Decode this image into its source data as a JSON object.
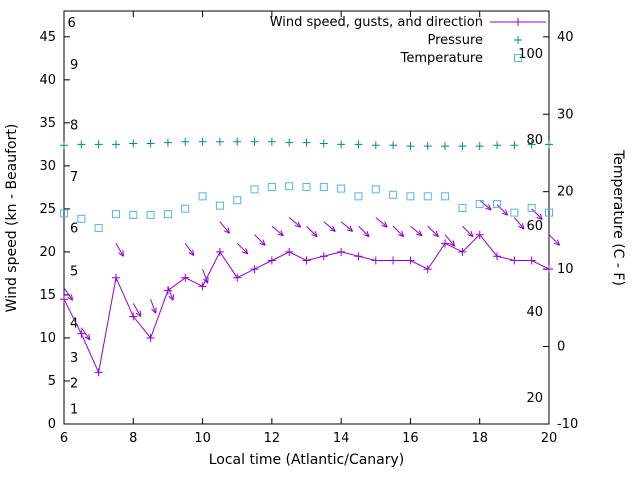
{
  "chart_data": {
    "type": "line",
    "title": "",
    "xlabel": "Local time (Atlantic/Canary)",
    "ylabel_left": "Wind speed (kn - Beaufort)",
    "ylabel_right": "Temperature (C - F)",
    "x_range": [
      6,
      20
    ],
    "y_left_range": [
      0,
      48
    ],
    "y_right_range": [
      -10,
      43.3
    ],
    "x_ticks": [
      6,
      8,
      10,
      12,
      14,
      16,
      18,
      20
    ],
    "y_left_ticks": [
      0,
      5,
      10,
      15,
      20,
      25,
      30,
      35,
      40,
      45
    ],
    "y_right_ticks": [
      -10,
      0,
      10,
      20,
      30,
      40
    ],
    "grid": false,
    "beaufort_labels": [
      {
        "label": "1",
        "kn": 1
      },
      {
        "label": "2",
        "kn": 4
      },
      {
        "label": "3",
        "kn": 7
      },
      {
        "label": "4",
        "kn": 11
      },
      {
        "label": "5",
        "kn": 17
      },
      {
        "label": "6",
        "kn": 22
      },
      {
        "label": "7",
        "kn": 28
      },
      {
        "label": "8",
        "kn": 34
      },
      {
        "label": "9",
        "kn": 41
      }
    ],
    "fahrenheit_labels": [
      {
        "label": "20",
        "f": 20
      },
      {
        "label": "40",
        "f": 40
      },
      {
        "label": "60",
        "f": 60
      },
      {
        "label": "80",
        "f": 80
      },
      {
        "label": "100",
        "f": 100
      }
    ],
    "extra_labels": [
      {
        "label": "6",
        "x": 6.1,
        "kn": 46.6
      }
    ],
    "x": [
      6,
      6.5,
      7,
      7.5,
      8,
      8.5,
      9,
      9.5,
      10,
      10.5,
      11,
      11.5,
      12,
      12.5,
      13,
      13.5,
      14,
      14.5,
      15,
      15.5,
      16,
      16.5,
      17,
      17.5,
      18,
      18.5,
      19,
      19.5,
      20
    ],
    "series": [
      {
        "name": "Wind speed, gusts, and direction",
        "style": "linespoints",
        "marker": "plus",
        "color": "#9400d3",
        "axis": "left",
        "units": "kn",
        "values": [
          14.5,
          10.5,
          6,
          17,
          12.5,
          10,
          15.5,
          17,
          16,
          20,
          17,
          18,
          19,
          20,
          19,
          19.5,
          20,
          19.5,
          19,
          19,
          19,
          18,
          21,
          20,
          22,
          19.5,
          19,
          19,
          18
        ]
      },
      {
        "name": "Wind gusts with direction arrows",
        "style": "arrows",
        "color": "#9400d3",
        "axis": "left",
        "units": "kn",
        "values": [
          15.8,
          11.2,
          null,
          21,
          14,
          14.5,
          16,
          21,
          18,
          23.5,
          21,
          22,
          23,
          24,
          23,
          23.5,
          23.5,
          23,
          24,
          23,
          23,
          23,
          22,
          23,
          26,
          25.5,
          24,
          25,
          22
        ],
        "direction_deg_screen": [
          55,
          55,
          null,
          60,
          60,
          70,
          70,
          55,
          70,
          50,
          45,
          45,
          40,
          40,
          45,
          40,
          40,
          45,
          40,
          45,
          40,
          45,
          50,
          45,
          40,
          45,
          50,
          45,
          45
        ]
      },
      {
        "name": "Pressure",
        "style": "points",
        "marker": "plus",
        "color": "#008b8b",
        "axis": "left",
        "units": "left-axis position",
        "values": [
          32.4,
          32.5,
          32.5,
          32.5,
          32.6,
          32.6,
          32.7,
          32.8,
          32.8,
          32.8,
          32.8,
          32.8,
          32.8,
          32.7,
          32.7,
          32.6,
          32.5,
          32.5,
          32.4,
          32.4,
          32.3,
          32.3,
          32.3,
          32.3,
          32.3,
          32.4,
          32.4,
          32.5,
          32.5
        ]
      },
      {
        "name": "Temperature",
        "style": "points",
        "marker": "square",
        "color": "#56b4e9",
        "axis": "right",
        "units": "C",
        "values": [
          17.2,
          16.5,
          15.3,
          17.1,
          17,
          17,
          17.1,
          17.8,
          19.4,
          18.2,
          18.9,
          20.3,
          20.6,
          20.7,
          20.6,
          20.6,
          20.4,
          19.4,
          20.3,
          19.6,
          19.4,
          19.4,
          19.4,
          17.9,
          18.4,
          18.4,
          17.3,
          17.9,
          17.3
        ]
      }
    ],
    "legend": {
      "position": "top-right-inside",
      "entries": [
        {
          "label": "Wind speed, gusts, and direction",
          "style": "linespoints",
          "marker": "plus",
          "color": "#9400d3"
        },
        {
          "label": "Pressure",
          "style": "points",
          "marker": "plus",
          "color": "#008b8b"
        },
        {
          "label": "Temperature",
          "style": "points",
          "marker": "square",
          "color": "#56b4e9"
        }
      ]
    },
    "colors": {
      "axis": "#000000",
      "background": "#ffffff"
    }
  }
}
